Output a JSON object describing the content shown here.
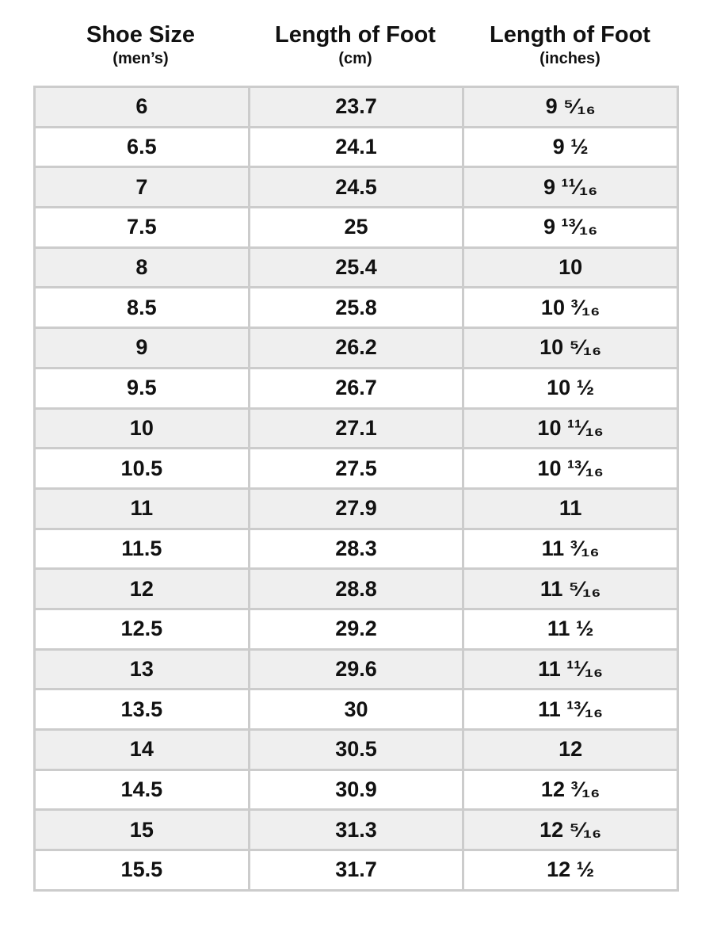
{
  "headers": [
    {
      "title": "Shoe Size",
      "sub": "(men’s)"
    },
    {
      "title": "Length of Foot",
      "sub": "(cm)"
    },
    {
      "title": "Length of Foot",
      "sub": "(inches)"
    }
  ],
  "row_colors": {
    "odd": "#efefef",
    "even": "#ffffff",
    "border": "#cccccc"
  },
  "rows": [
    [
      "6",
      "23.7",
      "9 ⁵⁄₁₆"
    ],
    [
      "6.5",
      "24.1",
      "9 ½"
    ],
    [
      "7",
      "24.5",
      "9 ¹¹⁄₁₆"
    ],
    [
      "7.5",
      "25",
      "9 ¹³⁄₁₆"
    ],
    [
      "8",
      "25.4",
      "10"
    ],
    [
      "8.5",
      "25.8",
      "10 ³⁄₁₆"
    ],
    [
      "9",
      "26.2",
      "10 ⁵⁄₁₆"
    ],
    [
      "9.5",
      "26.7",
      "10 ½"
    ],
    [
      "10",
      "27.1",
      "10 ¹¹⁄₁₆"
    ],
    [
      "10.5",
      "27.5",
      "10 ¹³⁄₁₆"
    ],
    [
      "11",
      "27.9",
      "11"
    ],
    [
      "11.5",
      "28.3",
      "11 ³⁄₁₆"
    ],
    [
      "12",
      "28.8",
      "11 ⁵⁄₁₆"
    ],
    [
      "12.5",
      "29.2",
      "11 ½"
    ],
    [
      "13",
      "29.6",
      "11 ¹¹⁄₁₆"
    ],
    [
      "13.5",
      "30",
      "11 ¹³⁄₁₆"
    ],
    [
      "14",
      "30.5",
      "12"
    ],
    [
      "14.5",
      "30.9",
      "12 ³⁄₁₆"
    ],
    [
      "15",
      "31.3",
      "12 ⁵⁄₁₆"
    ],
    [
      "15.5",
      "31.7",
      "12 ½"
    ]
  ]
}
